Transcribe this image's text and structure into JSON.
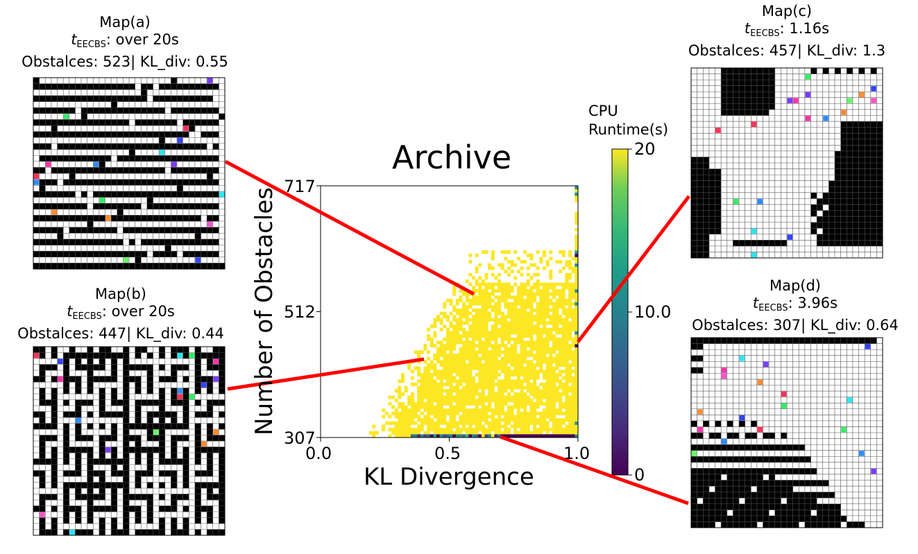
{
  "archive": {
    "title": "Archive",
    "xlabel": "KL Divergence",
    "ylabel": "Number of Obstacles",
    "xticks": [
      "0.0",
      "0.5",
      "1.0"
    ],
    "yticks": [
      "717",
      "512",
      "307"
    ]
  },
  "colorbar": {
    "label_line1": "CPU",
    "label_line2": "Runtime(s)",
    "ticks": [
      "20",
      "10.0",
      "0"
    ],
    "colormap": "viridis"
  },
  "maps": [
    {
      "name": "Map(a)",
      "time_var": "t",
      "time_sub": "EECBS",
      "time_text": ": over 20s",
      "stats": "Obstalces: 523| KL_div: 0.55"
    },
    {
      "name": "Map(b)",
      "time_var": "t",
      "time_sub": "EECBS",
      "time_text": ": over 20s",
      "stats": "Obstalces: 447| KL_div: 0.44"
    },
    {
      "name": "Map(c)",
      "time_var": "t",
      "time_sub": "EECBS",
      "time_text": ": 1.16s",
      "stats": "Obstalces: 457| KL_div: 1.3"
    },
    {
      "name": "Map(d)",
      "time_var": "t",
      "time_sub": "EECBS",
      "time_text": ": 3.96s",
      "stats": "Obstalces: 307| KL_div: 0.64"
    }
  ],
  "colors": {
    "yellow": "#fde725",
    "purple": "#440154",
    "teal": "#21918c",
    "connector": "#ff0000",
    "wall": "#000000"
  }
}
